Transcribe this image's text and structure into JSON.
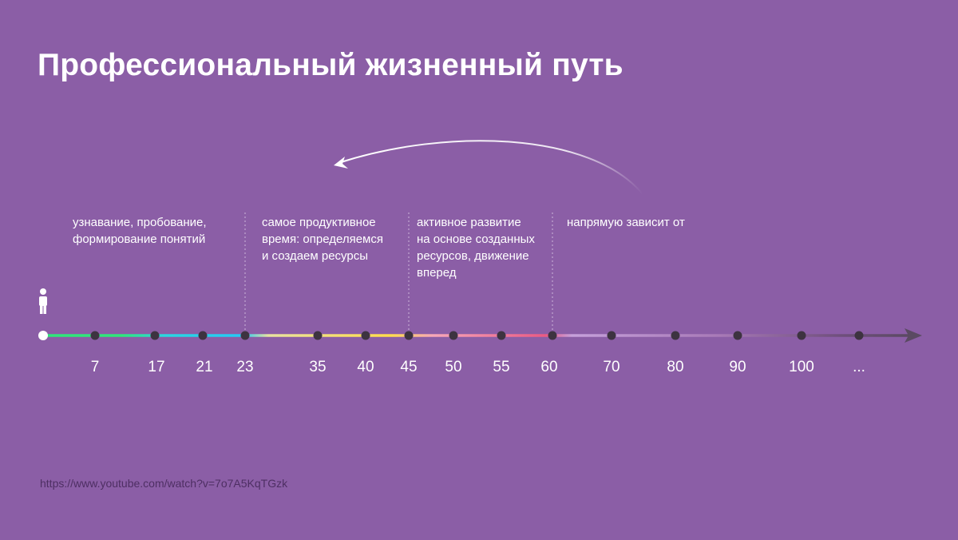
{
  "title": "Профессиональный жизненный путь",
  "phases": [
    "узнавание, пробование,\nформирование понятий",
    "самое продуктивное\nвремя: определяемся\nи создаем ресурсы",
    "активное развитие\nна основе созданных\nресурсов, движение\nвперед",
    "напрямую зависит от"
  ],
  "timeline": {
    "ticks": [
      "7",
      "17",
      "21",
      "23",
      "35",
      "40",
      "45",
      "50",
      "55",
      "60",
      "70",
      "80",
      "90",
      "100",
      "..."
    ],
    "boundaries": [
      "23",
      "45",
      "60"
    ],
    "person_icon": "person-icon",
    "arrow_icon": "arrow-right-icon",
    "return_arrow_icon": "curved-arrow-left-icon"
  },
  "colors": {
    "background": "#8b5ea6",
    "dot": "#3d3340",
    "gradient": [
      "#2ee87a",
      "#2ee87a",
      "#2ad7e0",
      "#25c9f5",
      "#e8e3a0",
      "#ffde4a",
      "#f7a7b9",
      "#ea5a83",
      "#c6a1db",
      "#a87ab7",
      "#6f4f7c",
      "#5a4a62"
    ]
  },
  "source": "https://www.youtube.com/watch?v=7o7A5KqTGzk"
}
